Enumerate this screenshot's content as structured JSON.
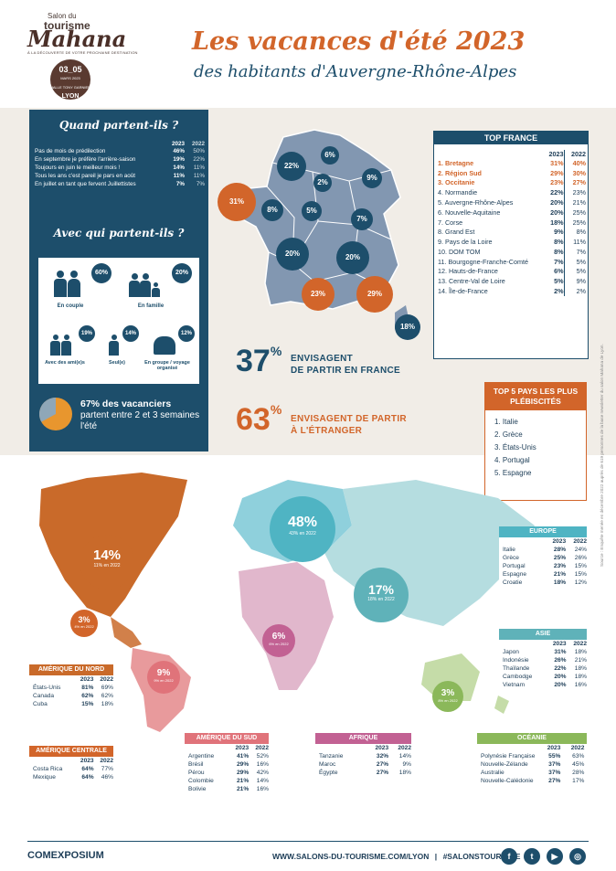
{
  "header": {
    "logo_small": "Salon du",
    "logo_tourisme": "tourisme",
    "logo_brand": "Mahana",
    "logo_tagline": "À LA DÉCOUVERTE DE VOTRE PROCHAINE DESTINATION",
    "date_days": "03_05",
    "date_month": "MARS 2023",
    "date_venue": "HALLE TONY GARNIER",
    "date_city": "LYON",
    "title": "Les vacances d'été 2023",
    "subtitle": "des habitants d'Auvergne-Rhône-Alpes"
  },
  "when": {
    "title": "Quand partent-ils ?",
    "col_2023": "2023",
    "col_2022": "2022",
    "rows": [
      {
        "label": "Pas de mois de prédilection",
        "v2023": "46%",
        "v2022": "50%"
      },
      {
        "label": "En septembre je préfère l'arrière-saison",
        "v2023": "19%",
        "v2022": "22%"
      },
      {
        "label": "Toujours en juin le meilleur mois !",
        "v2023": "14%",
        "v2022": "11%"
      },
      {
        "label": "Tous les ans c'est pareil je pars en août",
        "v2023": "11%",
        "v2022": "11%"
      },
      {
        "label": "En juillet en tant que fervent Juillettistes",
        "v2023": "7%",
        "v2022": "7%"
      }
    ]
  },
  "with": {
    "title": "Avec qui partent-ils ?",
    "couple": {
      "label": "En couple",
      "pct": "60%"
    },
    "family": {
      "label": "En famille",
      "pct": "20%"
    },
    "friends": {
      "label": "Avec des ami(e)s",
      "pct": "19%"
    },
    "alone": {
      "label": "Seul(e)",
      "pct": "14%"
    },
    "group": {
      "label": "En groupe / voyage organisé",
      "pct": "12%"
    }
  },
  "duration": {
    "pct_value": 67,
    "bold": "67% des vacanciers",
    "text": "partent entre 2 et 3 semaines l'été"
  },
  "france_map": {
    "bubbles": [
      "6%",
      "22%",
      "2%",
      "9%",
      "31%",
      "8%",
      "5%",
      "7%",
      "20%",
      "20%",
      "23%",
      "29%",
      "18%"
    ]
  },
  "top_france": {
    "title": "TOP FRANCE",
    "col_2023": "2023",
    "col_2022": "2022",
    "rows": [
      {
        "label": "1. Bretagne",
        "v2023": "31%",
        "v2022": "40%"
      },
      {
        "label": "2. Région Sud",
        "v2023": "29%",
        "v2022": "30%"
      },
      {
        "label": "3. Occitanie",
        "v2023": "23%",
        "v2022": "27%"
      },
      {
        "label": "4. Normandie",
        "v2023": "22%",
        "v2022": "23%"
      },
      {
        "label": "5. Auvergne-Rhône-Alpes",
        "v2023": "20%",
        "v2022": "21%"
      },
      {
        "label": "6. Nouvelle-Aquitaine",
        "v2023": "20%",
        "v2022": "25%"
      },
      {
        "label": "7. Corse",
        "v2023": "18%",
        "v2022": "25%"
      },
      {
        "label": "8. Grand Est",
        "v2023": "9%",
        "v2022": "8%"
      },
      {
        "label": "9. Pays de la Loire",
        "v2023": "8%",
        "v2022": "11%"
      },
      {
        "label": "10. DOM TOM",
        "v2023": "8%",
        "v2022": "7%"
      },
      {
        "label": "11. Bourgogne-Franche-Comté",
        "v2023": "7%",
        "v2022": "5%"
      },
      {
        "label": "12. Hauts-de-France",
        "v2023": "6%",
        "v2022": "5%"
      },
      {
        "label": "13. Centre-Val de Loire",
        "v2023": "5%",
        "v2022": "9%"
      },
      {
        "label": "14. Île-de-France",
        "v2023": "2%",
        "v2022": "2%"
      }
    ]
  },
  "stats": {
    "france_pct": "37",
    "france_label_1": "ENVISAGENT",
    "france_label_2": "DE PARTIR EN FRANCE",
    "abroad_pct": "63",
    "abroad_label_1": "ENVISAGENT DE PARTIR",
    "abroad_label_2": "À L'ÉTRANGER",
    "pct_sign": "%"
  },
  "top5": {
    "title": "TOP 5 PAYS LES PLUS PLÉBISCITÉS",
    "items": [
      "1. Italie",
      "2. Grèce",
      "3. États-Unis",
      "4. Portugal",
      "5. Espagne"
    ]
  },
  "world": {
    "north_america": {
      "pct": "14%",
      "sub": "11% en 2022"
    },
    "central_america": {
      "pct": "3%",
      "sub": "4% en 2022"
    },
    "south_america": {
      "pct": "9%",
      "sub": "9% en 2022"
    },
    "europe": {
      "pct": "48%",
      "sub": "43% en 2022"
    },
    "africa": {
      "pct": "6%",
      "sub": "6% en 2022"
    },
    "asia": {
      "pct": "17%",
      "sub": "18% en 2022"
    },
    "oceania": {
      "pct": "3%",
      "sub": "8% en 2022"
    }
  },
  "regions": {
    "col_2023": "2023",
    "col_2022": "2022",
    "amerique_nord": {
      "title": "AMÉRIQUE DU NORD",
      "rows": [
        [
          "États-Unis",
          "81%",
          "69%"
        ],
        [
          "Canada",
          "62%",
          "62%"
        ],
        [
          "Cuba",
          "15%",
          "18%"
        ]
      ]
    },
    "amerique_centrale": {
      "title": "AMÉRIQUE CENTRALE",
      "rows": [
        [
          "Costa Rica",
          "64%",
          "77%"
        ],
        [
          "Mexique",
          "64%",
          "46%"
        ]
      ]
    },
    "amerique_sud": {
      "title": "AMÉRIQUE DU SUD",
      "rows": [
        [
          "Argentine",
          "41%",
          "52%"
        ],
        [
          "Brésil",
          "29%",
          "16%"
        ],
        [
          "Pérou",
          "29%",
          "42%"
        ],
        [
          "Colombie",
          "21%",
          "14%"
        ],
        [
          "Bolivie",
          "21%",
          "16%"
        ]
      ]
    },
    "afrique": {
      "title": "AFRIQUE",
      "rows": [
        [
          "Tanzanie",
          "32%",
          "14%"
        ],
        [
          "Maroc",
          "27%",
          "9%"
        ],
        [
          "Égypte",
          "27%",
          "18%"
        ]
      ]
    },
    "europe": {
      "title": "EUROPE",
      "rows": [
        [
          "Italie",
          "28%",
          "24%"
        ],
        [
          "Grèce",
          "25%",
          "26%"
        ],
        [
          "Portugal",
          "23%",
          "15%"
        ],
        [
          "Espagne",
          "21%",
          "15%"
        ],
        [
          "Croatie",
          "18%",
          "12%"
        ]
      ]
    },
    "asie": {
      "title": "ASIE",
      "rows": [
        [
          "Japon",
          "31%",
          "18%"
        ],
        [
          "Indonésie",
          "26%",
          "21%"
        ],
        [
          "Thaïlande",
          "22%",
          "18%"
        ],
        [
          "Cambodge",
          "20%",
          "18%"
        ],
        [
          "Vietnam",
          "20%",
          "16%"
        ]
      ]
    },
    "oceanie": {
      "title": "OCÉANIE",
      "rows": [
        [
          "Polynésie Française",
          "55%",
          "63%"
        ],
        [
          "Nouvelle-Zélande",
          "37%",
          "45%"
        ],
        [
          "Australie",
          "37%",
          "28%"
        ],
        [
          "Nouvelle-Calédonie",
          "27%",
          "17%"
        ]
      ]
    }
  },
  "source": "Source : Enquête menée en décembre 2022 auprès de 619 personnes de la base newsletter du salon Mahana de Lyon.",
  "footer": {
    "company": "COMEXPOSIUM",
    "url": "WWW.SALONS-DU-TOURISME.COM/LYON",
    "separator": "|",
    "hashtag": "#SALONSTOURISME",
    "social": [
      "f",
      "t",
      "▶",
      "◎"
    ]
  },
  "colors": {
    "navy": "#1d4e6b",
    "orange": "#d2652a",
    "north_america": "#c96a2a",
    "south_america": "#e89a9c",
    "europe": "#4fb4c3",
    "africa": "#c983a8",
    "asia": "#5fb2b9",
    "oceania": "#8bb85a",
    "band": "#f1ede7"
  }
}
